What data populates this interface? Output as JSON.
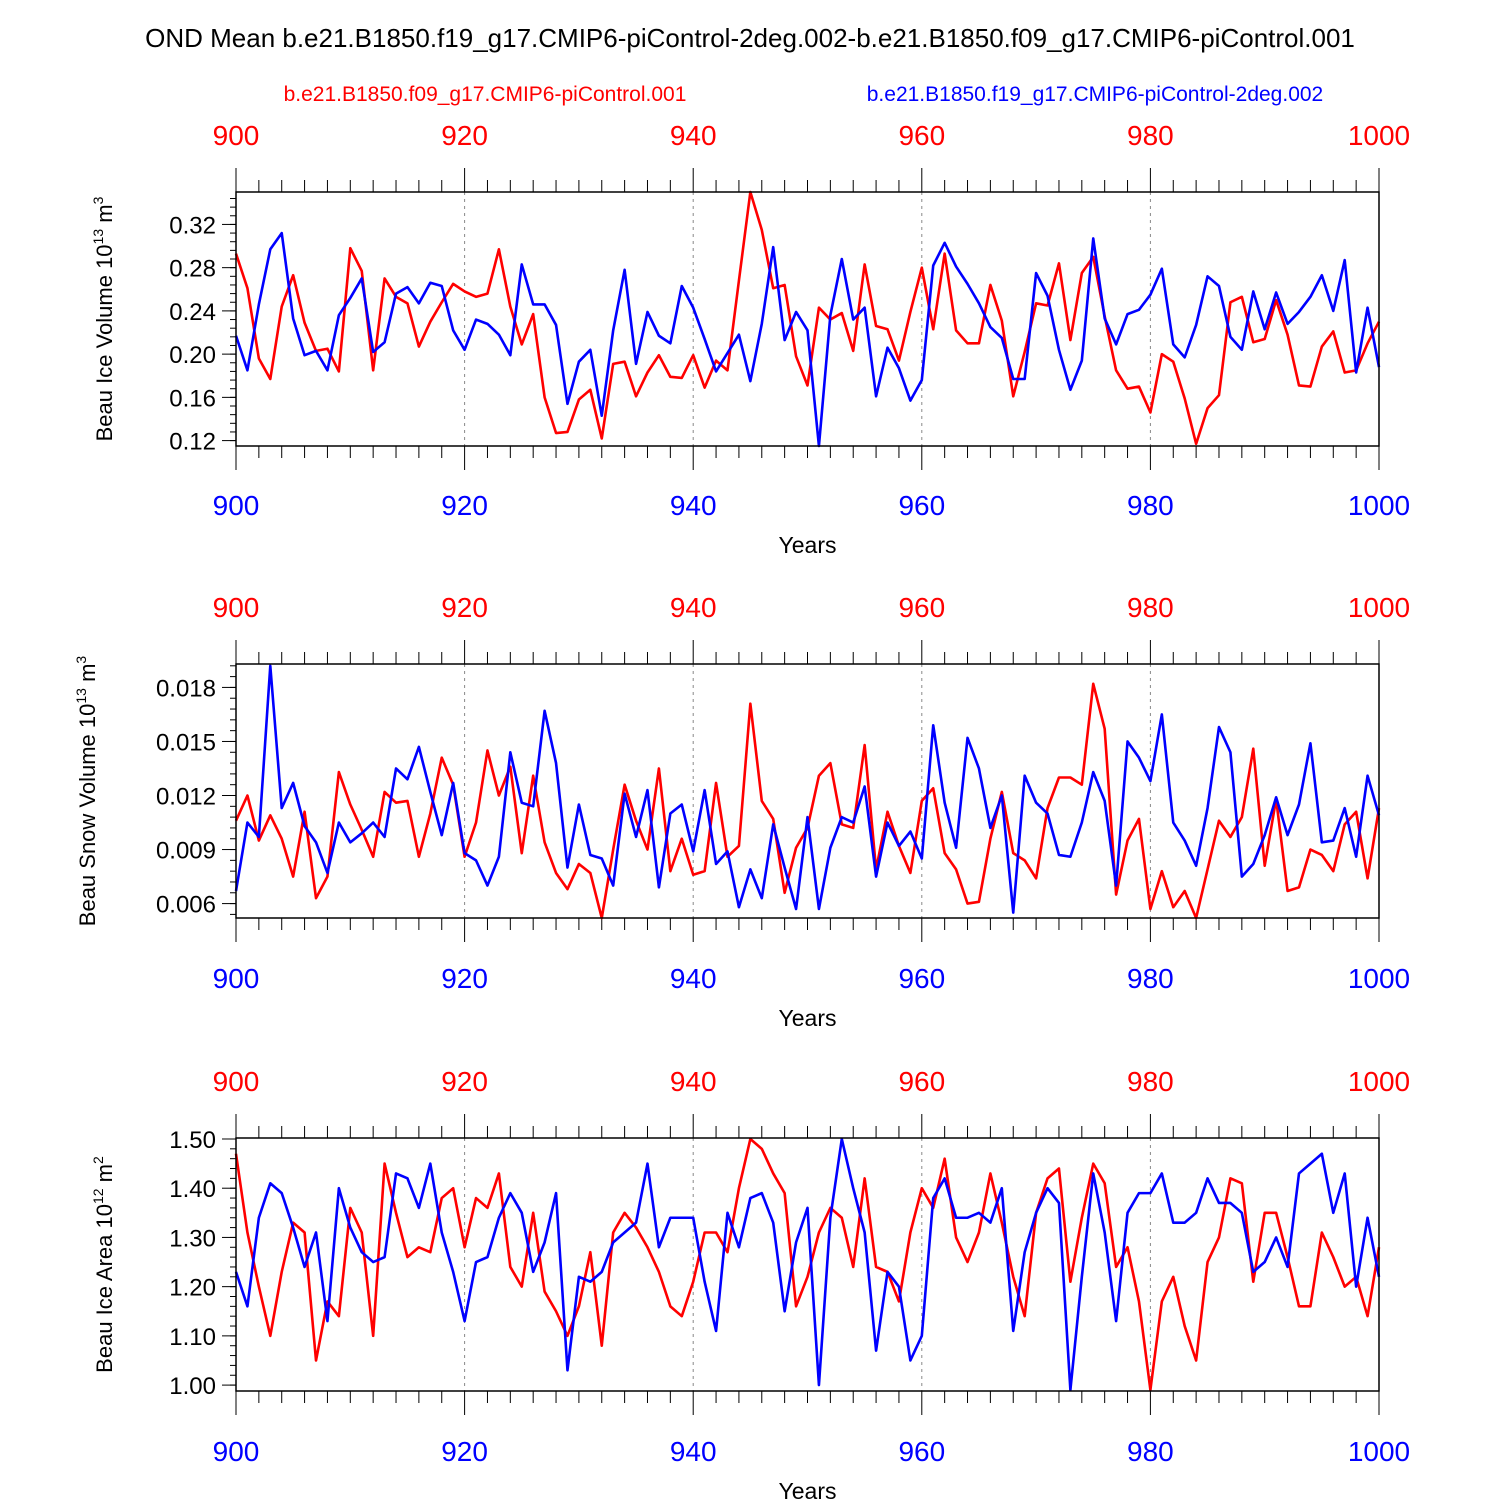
{
  "title": "OND Mean b.e21.B1850.f19_g17.CMIP6-piControl-2deg.002-b.e21.B1850.f09_g17.CMIP6-piControl.001",
  "legend": {
    "red_label": "b.e21.B1850.f09_g17.CMIP6-piControl.001",
    "blue_label": "b.e21.B1850.f19_g17.CMIP6-piControl-2deg.002"
  },
  "colors": {
    "red": "#ff0000",
    "blue": "#0000ff",
    "axis": "#000000",
    "grid": "#888888"
  },
  "chart_data": [
    {
      "type": "line",
      "ylabel_main": "Beau Ice Volume 10",
      "ylabel_exp": "13",
      "ylabel_unit": " m",
      "ylabel_unit_exp": "3",
      "xlabel": "Years",
      "xlim": [
        900,
        1000
      ],
      "ylim": [
        0.115,
        0.35
      ],
      "yticks": [
        0.12,
        0.16,
        0.2,
        0.24,
        0.28,
        0.32
      ],
      "ytick_labels": [
        "0.12",
        "0.16",
        "0.20",
        "0.24",
        "0.28",
        "0.32"
      ],
      "xticks": [
        900,
        920,
        940,
        960,
        980,
        1000
      ],
      "xtick_labels": [
        "900",
        "920",
        "940",
        "960",
        "980",
        "1000"
      ],
      "series": [
        {
          "name": "b.e21.B1850.f09_g17.CMIP6-piControl.001",
          "color": "red",
          "values": [
            0.293,
            0.261,
            0.196,
            0.177,
            0.244,
            0.273,
            0.229,
            0.203,
            0.205,
            0.184,
            0.298,
            0.277,
            0.185,
            0.27,
            0.253,
            0.247,
            0.207,
            0.23,
            0.248,
            0.265,
            0.258,
            0.253,
            0.256,
            0.297,
            0.244,
            0.209,
            0.237,
            0.16,
            0.127,
            0.128,
            0.158,
            0.167,
            0.122,
            0.191,
            0.193,
            0.161,
            0.183,
            0.199,
            0.179,
            0.178,
            0.199,
            0.169,
            0.194,
            0.185,
            0.268,
            0.35,
            0.315,
            0.261,
            0.264,
            0.198,
            0.171,
            0.243,
            0.232,
            0.238,
            0.203,
            0.283,
            0.226,
            0.223,
            0.194,
            0.239,
            0.28,
            0.223,
            0.293,
            0.222,
            0.21,
            0.21,
            0.264,
            0.231,
            0.161,
            0.202,
            0.247,
            0.245,
            0.284,
            0.213,
            0.275,
            0.29,
            0.235,
            0.185,
            0.168,
            0.17,
            0.146,
            0.2,
            0.193,
            0.159,
            0.117,
            0.15,
            0.162,
            0.248,
            0.253,
            0.211,
            0.214,
            0.25,
            0.218,
            0.171,
            0.17,
            0.207,
            0.221,
            0.183,
            0.185,
            0.21,
            0.23
          ]
        },
        {
          "name": "b.e21.B1850.f19_g17.CMIP6-piControl-2deg.002",
          "color": "blue",
          "values": [
            0.217,
            0.185,
            0.246,
            0.297,
            0.312,
            0.233,
            0.199,
            0.203,
            0.185,
            0.236,
            0.252,
            0.27,
            0.202,
            0.211,
            0.256,
            0.262,
            0.247,
            0.266,
            0.263,
            0.222,
            0.204,
            0.232,
            0.228,
            0.218,
            0.199,
            0.283,
            0.246,
            0.246,
            0.227,
            0.154,
            0.193,
            0.204,
            0.143,
            0.222,
            0.278,
            0.191,
            0.239,
            0.217,
            0.21,
            0.263,
            0.243,
            0.214,
            0.184,
            0.201,
            0.218,
            0.175,
            0.228,
            0.299,
            0.213,
            0.239,
            0.222,
            0.115,
            0.236,
            0.288,
            0.232,
            0.243,
            0.161,
            0.206,
            0.187,
            0.157,
            0.176,
            0.282,
            0.303,
            0.281,
            0.265,
            0.247,
            0.225,
            0.215,
            0.177,
            0.177,
            0.275,
            0.254,
            0.204,
            0.167,
            0.194,
            0.307,
            0.233,
            0.209,
            0.237,
            0.241,
            0.255,
            0.279,
            0.209,
            0.197,
            0.227,
            0.272,
            0.263,
            0.216,
            0.204,
            0.258,
            0.223,
            0.257,
            0.228,
            0.239,
            0.253,
            0.273,
            0.24,
            0.287,
            0.183,
            0.243,
            0.188
          ]
        }
      ]
    },
    {
      "type": "line",
      "ylabel_main": "Beau Snow Volume 10",
      "ylabel_exp": "13",
      "ylabel_unit": " m",
      "ylabel_unit_exp": "3",
      "xlabel": "Years",
      "xlim": [
        900,
        1000
      ],
      "ylim": [
        0.0052,
        0.0193
      ],
      "yticks": [
        0.006,
        0.009,
        0.012,
        0.015,
        0.018
      ],
      "ytick_labels": [
        "0.006",
        "0.009",
        "0.012",
        "0.015",
        "0.018"
      ],
      "xticks": [
        900,
        920,
        940,
        960,
        980,
        1000
      ],
      "xtick_labels": [
        "900",
        "920",
        "940",
        "960",
        "980",
        "1000"
      ],
      "series": [
        {
          "name": "b.e21.B1850.f09_g17.CMIP6-piControl.001",
          "color": "red",
          "values": [
            0.0106,
            0.012,
            0.0095,
            0.0109,
            0.0096,
            0.0075,
            0.0111,
            0.0063,
            0.0075,
            0.0133,
            0.0115,
            0.0101,
            0.0086,
            0.0122,
            0.0116,
            0.0117,
            0.0086,
            0.011,
            0.0141,
            0.0126,
            0.0086,
            0.0105,
            0.0145,
            0.012,
            0.0136,
            0.0088,
            0.0131,
            0.0094,
            0.0077,
            0.0068,
            0.0082,
            0.0077,
            0.0052,
            0.009,
            0.0126,
            0.0106,
            0.009,
            0.0135,
            0.0078,
            0.0096,
            0.0076,
            0.0078,
            0.0127,
            0.0086,
            0.0092,
            0.0171,
            0.0117,
            0.0107,
            0.0066,
            0.0091,
            0.0102,
            0.0131,
            0.0138,
            0.0104,
            0.0102,
            0.0148,
            0.0079,
            0.0111,
            0.0092,
            0.0077,
            0.0117,
            0.0124,
            0.0088,
            0.0079,
            0.006,
            0.0061,
            0.0096,
            0.0122,
            0.0088,
            0.0084,
            0.0074,
            0.0113,
            0.013,
            0.013,
            0.0126,
            0.0182,
            0.0157,
            0.0065,
            0.0095,
            0.0107,
            0.0057,
            0.0078,
            0.0058,
            0.0067,
            0.0052,
            0.0079,
            0.0106,
            0.0097,
            0.0108,
            0.0146,
            0.0081,
            0.0118,
            0.0067,
            0.0069,
            0.009,
            0.0087,
            0.0078,
            0.0104,
            0.0111,
            0.0074,
            0.0113
          ]
        },
        {
          "name": "b.e21.B1850.f19_g17.CMIP6-piControl-2deg.002",
          "color": "blue",
          "values": [
            0.0067,
            0.0105,
            0.0097,
            0.0192,
            0.0113,
            0.0127,
            0.0103,
            0.0094,
            0.0077,
            0.0105,
            0.0094,
            0.0099,
            0.0105,
            0.0097,
            0.0135,
            0.0129,
            0.0147,
            0.0122,
            0.0098,
            0.0127,
            0.0088,
            0.0084,
            0.007,
            0.0086,
            0.0144,
            0.0116,
            0.0114,
            0.0167,
            0.0138,
            0.008,
            0.0115,
            0.0087,
            0.0085,
            0.007,
            0.0121,
            0.0097,
            0.0123,
            0.0069,
            0.011,
            0.0115,
            0.0089,
            0.0123,
            0.0082,
            0.0089,
            0.0058,
            0.0079,
            0.0063,
            0.0104,
            0.008,
            0.0057,
            0.0108,
            0.0057,
            0.0091,
            0.0108,
            0.0105,
            0.0125,
            0.0075,
            0.0105,
            0.0092,
            0.01,
            0.0085,
            0.0159,
            0.0116,
            0.0091,
            0.0152,
            0.0135,
            0.0102,
            0.012,
            0.0055,
            0.0131,
            0.0116,
            0.011,
            0.0087,
            0.0086,
            0.0105,
            0.0133,
            0.0117,
            0.007,
            0.015,
            0.0141,
            0.0128,
            0.0165,
            0.0105,
            0.0095,
            0.0081,
            0.0113,
            0.0158,
            0.0144,
            0.0075,
            0.0082,
            0.0098,
            0.0119,
            0.0098,
            0.0115,
            0.0149,
            0.0094,
            0.0095,
            0.0113,
            0.0086,
            0.0131,
            0.0109
          ]
        }
      ]
    },
    {
      "type": "line",
      "ylabel_main": "Beau Ice Area 10",
      "ylabel_exp": "12",
      "ylabel_unit": " m",
      "ylabel_unit_exp": "2",
      "xlabel": "Years",
      "xlim": [
        900,
        1000
      ],
      "ylim": [
        0.988,
        1.502
      ],
      "yticks": [
        1.0,
        1.1,
        1.2,
        1.3,
        1.4,
        1.5
      ],
      "ytick_labels": [
        "1.00",
        "1.10",
        "1.20",
        "1.30",
        "1.40",
        "1.50"
      ],
      "xticks": [
        900,
        920,
        940,
        960,
        980,
        1000
      ],
      "xtick_labels": [
        "900",
        "920",
        "940",
        "960",
        "980",
        "1000"
      ],
      "series": [
        {
          "name": "b.e21.B1850.f09_g17.CMIP6-piControl.001",
          "color": "red",
          "values": [
            1.47,
            1.31,
            1.2,
            1.1,
            1.23,
            1.33,
            1.31,
            1.05,
            1.17,
            1.14,
            1.36,
            1.31,
            1.1,
            1.45,
            1.35,
            1.26,
            1.28,
            1.27,
            1.38,
            1.4,
            1.28,
            1.38,
            1.36,
            1.43,
            1.24,
            1.2,
            1.35,
            1.19,
            1.15,
            1.1,
            1.16,
            1.27,
            1.08,
            1.31,
            1.35,
            1.32,
            1.28,
            1.23,
            1.16,
            1.14,
            1.21,
            1.31,
            1.31,
            1.27,
            1.4,
            1.5,
            1.48,
            1.43,
            1.39,
            1.16,
            1.22,
            1.31,
            1.36,
            1.34,
            1.24,
            1.42,
            1.24,
            1.23,
            1.17,
            1.31,
            1.4,
            1.36,
            1.46,
            1.3,
            1.25,
            1.31,
            1.43,
            1.33,
            1.22,
            1.14,
            1.35,
            1.42,
            1.44,
            1.21,
            1.34,
            1.45,
            1.41,
            1.24,
            1.28,
            1.17,
            0.99,
            1.17,
            1.22,
            1.12,
            1.05,
            1.25,
            1.3,
            1.42,
            1.41,
            1.21,
            1.35,
            1.35,
            1.26,
            1.16,
            1.16,
            1.31,
            1.26,
            1.2,
            1.22,
            1.14,
            1.28
          ]
        },
        {
          "name": "b.e21.B1850.f19_g17.CMIP6-piControl-2deg.002",
          "color": "blue",
          "values": [
            1.23,
            1.16,
            1.34,
            1.41,
            1.39,
            1.32,
            1.24,
            1.31,
            1.13,
            1.4,
            1.32,
            1.27,
            1.25,
            1.26,
            1.43,
            1.42,
            1.36,
            1.45,
            1.31,
            1.23,
            1.13,
            1.25,
            1.26,
            1.34,
            1.39,
            1.35,
            1.23,
            1.29,
            1.39,
            1.03,
            1.22,
            1.21,
            1.23,
            1.29,
            1.31,
            1.33,
            1.45,
            1.28,
            1.34,
            1.34,
            1.34,
            1.21,
            1.11,
            1.35,
            1.28,
            1.38,
            1.39,
            1.33,
            1.15,
            1.29,
            1.36,
            1.0,
            1.34,
            1.5,
            1.4,
            1.31,
            1.07,
            1.23,
            1.2,
            1.05,
            1.1,
            1.38,
            1.42,
            1.34,
            1.34,
            1.35,
            1.33,
            1.4,
            1.11,
            1.27,
            1.35,
            1.4,
            1.37,
            0.99,
            1.22,
            1.43,
            1.31,
            1.13,
            1.35,
            1.39,
            1.39,
            1.43,
            1.33,
            1.33,
            1.35,
            1.42,
            1.37,
            1.37,
            1.35,
            1.23,
            1.25,
            1.3,
            1.24,
            1.43,
            1.45,
            1.47,
            1.35,
            1.43,
            1.2,
            1.34,
            1.22
          ]
        }
      ]
    }
  ]
}
